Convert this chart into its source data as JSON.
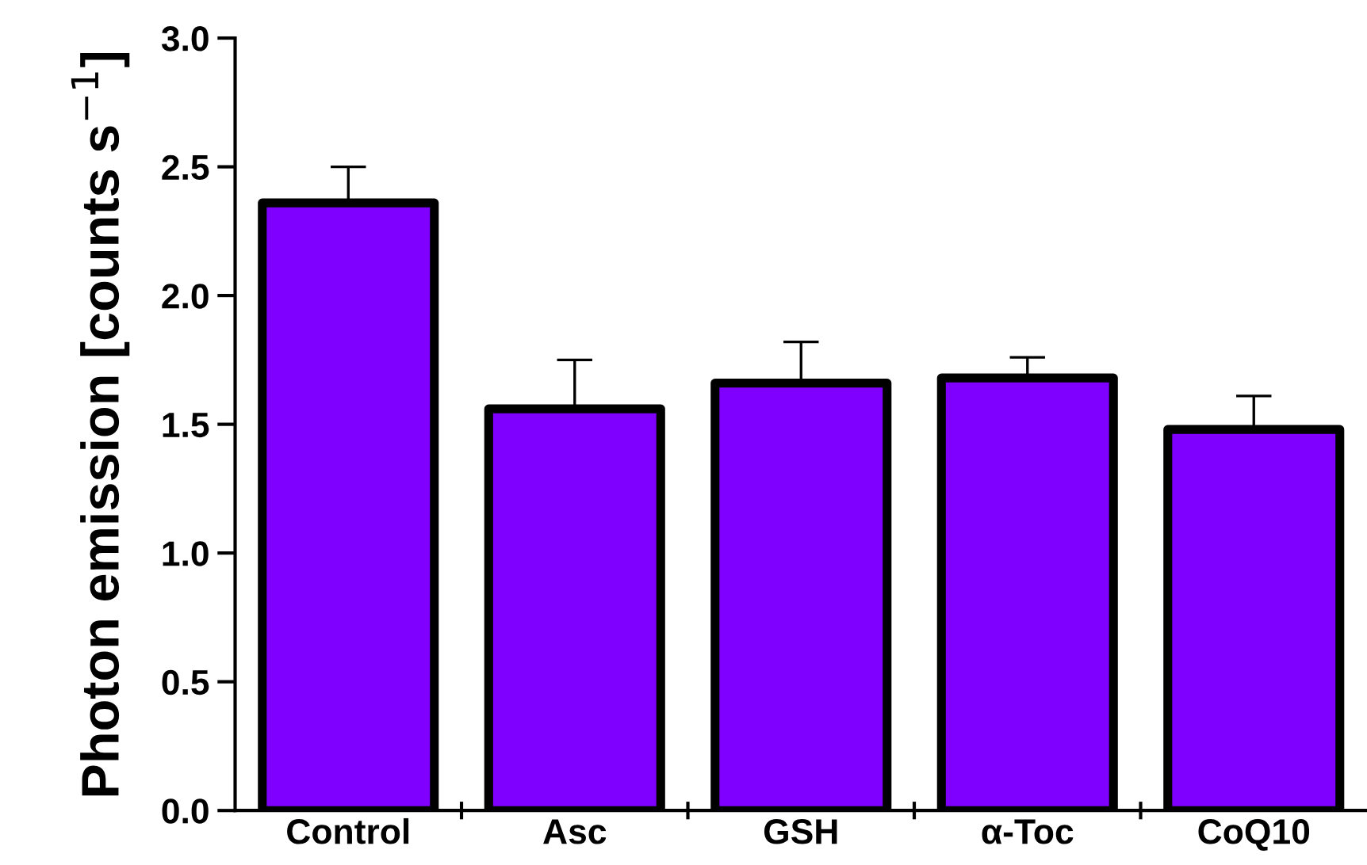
{
  "chart_data": {
    "type": "bar",
    "categories": [
      "Control",
      "Asc",
      "GSH",
      "α-Toc",
      "CoQ10"
    ],
    "values": [
      2.36,
      1.56,
      1.66,
      1.68,
      1.48
    ],
    "errors": [
      0.14,
      0.19,
      0.16,
      0.08,
      0.13
    ],
    "color": "#7f00ff",
    "ylabel": "Photon emission [counts s$^{−1}$]",
    "ylim": [
      0,
      3.0
    ],
    "yticks": [
      {
        "value": 0,
        "label": "0.0"
      },
      {
        "value": 0.5,
        "label": "0.5"
      },
      {
        "value": 1,
        "label": "1.0"
      },
      {
        "value": 1.5,
        "label": "1.5"
      },
      {
        "value": 2,
        "label": "2.0"
      },
      {
        "value": 2.5,
        "label": "2.5"
      },
      {
        "value": 3,
        "label": "3.0"
      }
    ],
    "grid": false
  }
}
